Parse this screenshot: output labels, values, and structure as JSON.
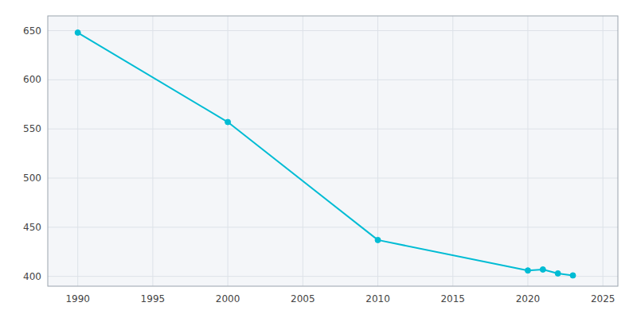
{
  "chart_data": {
    "type": "line",
    "x": [
      1990,
      2000,
      2010,
      2020,
      2021,
      2022,
      2023
    ],
    "values": [
      648,
      557,
      437,
      406,
      407,
      403,
      401
    ],
    "color": "#00BCD4",
    "marker": "circle",
    "xlim": [
      1988,
      2026
    ],
    "ylim": [
      390,
      665
    ],
    "xticks": [
      1990,
      1995,
      2000,
      2005,
      2010,
      2015,
      2020,
      2025
    ],
    "yticks": [
      400,
      450,
      500,
      550,
      600,
      650
    ],
    "grid": true
  }
}
